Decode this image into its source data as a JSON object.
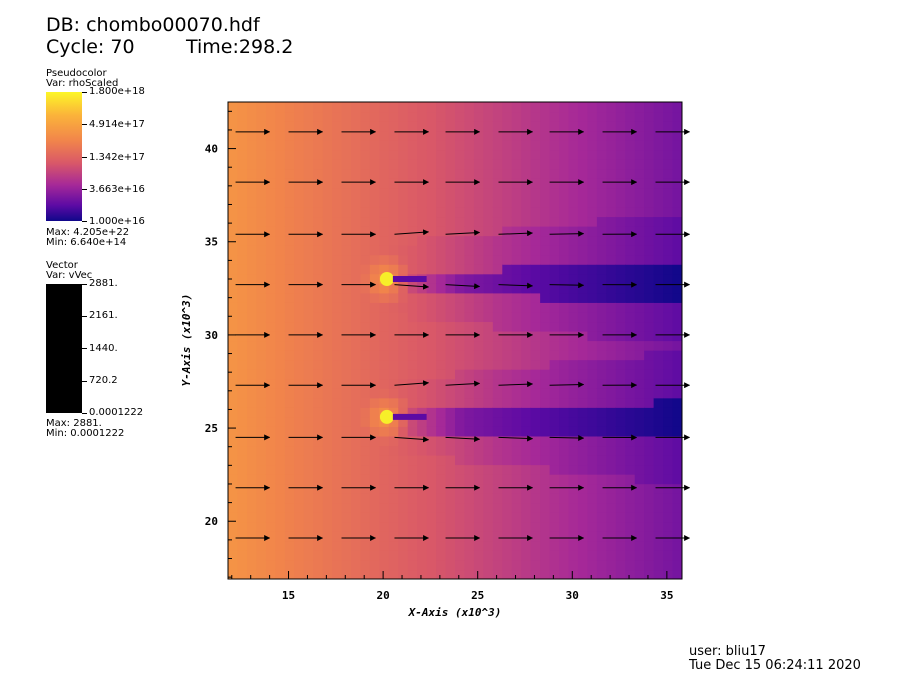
{
  "header": {
    "db": "DB: chombo00070.hdf",
    "cycle": "Cycle: 70",
    "time": "Time:298.2"
  },
  "legend_pseudocolor": {
    "title": "Pseudocolor",
    "var": "Var: rhoScaled",
    "ticks": [
      "1.800e+18",
      "4.914e+17",
      "1.342e+17",
      "3.663e+16",
      "1.000e+16"
    ],
    "max": "Max:  4.205e+22",
    "min": "Min:  6.640e+14"
  },
  "legend_vector": {
    "title": "Vector",
    "var": "Var: vVec",
    "ticks": [
      "2881.",
      "2161.",
      "1440.",
      "720.2",
      "0.0001222"
    ],
    "max": "Max:  2881.",
    "min": "Min:  0.0001222"
  },
  "footer": {
    "user": "user: bliu17",
    "date": "Tue Dec 15 06:24:11 2020"
  },
  "chart_data": {
    "type": "heatmap",
    "xlabel": "X-Axis (x10^3)",
    "ylabel": "Y-Axis (x10^3)",
    "xlim": [
      11.8,
      35.8
    ],
    "ylim": [
      16.9,
      42.5
    ],
    "xticks": [
      15,
      20,
      25,
      30,
      35
    ],
    "yticks": [
      20,
      25,
      30,
      35,
      40
    ],
    "xtick_labels": [
      "15",
      "20",
      "25",
      "30",
      "35"
    ],
    "ytick_labels": [
      "20",
      "25",
      "30",
      "35",
      "40"
    ],
    "colormap": [
      "#10078a",
      "#5c0aa4",
      "#a62998",
      "#d95868",
      "#f1844b",
      "#fbb33a",
      "#fcf627"
    ],
    "color_scale": "log",
    "color_range": [
      1e+16,
      1.8e+18
    ],
    "sources": [
      {
        "x": 20.2,
        "y": 33.0
      },
      {
        "x": 20.2,
        "y": 25.6
      }
    ],
    "vectors": {
      "x_positions": [
        12.2,
        15.0,
        17.8,
        20.6,
        23.3,
        26.1,
        28.8,
        31.6,
        34.4
      ],
      "y_positions": [
        19.1,
        21.8,
        24.5,
        27.3,
        30.0,
        32.7,
        35.4,
        38.2,
        40.9
      ],
      "magnitude_range": [
        0.0001222,
        2881
      ]
    }
  }
}
